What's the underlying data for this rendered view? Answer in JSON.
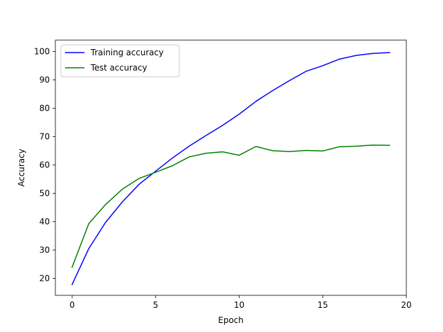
{
  "chart_data": {
    "type": "line",
    "title": "",
    "xlabel": "Epoch",
    "ylabel": "Accuracy",
    "xlim": [
      -1,
      20
    ],
    "ylim": [
      14,
      104
    ],
    "x_ticks": [
      0,
      5,
      10,
      15,
      20
    ],
    "y_ticks": [
      20,
      30,
      40,
      50,
      60,
      70,
      80,
      90,
      100
    ],
    "grid": false,
    "legend_position": "top-left",
    "x": [
      0,
      1,
      2,
      3,
      4,
      5,
      6,
      7,
      8,
      9,
      10,
      11,
      12,
      13,
      14,
      15,
      16,
      17,
      18,
      19
    ],
    "series": [
      {
        "name": "Training accuracy",
        "color": "#0000ff",
        "values": [
          17.8,
          30.5,
          39.7,
          46.9,
          53.1,
          57.8,
          62.4,
          66.6,
          70.3,
          73.9,
          77.9,
          82.4,
          86.2,
          89.7,
          93.0,
          95.0,
          97.3,
          98.6,
          99.3,
          99.6
        ]
      },
      {
        "name": "Test accuracy",
        "color": "#008000",
        "values": [
          23.9,
          39.3,
          46.0,
          51.4,
          55.2,
          57.4,
          59.7,
          62.8,
          64.1,
          64.6,
          63.4,
          66.5,
          65.0,
          64.7,
          65.1,
          64.9,
          66.4,
          66.6,
          67.0,
          66.9
        ]
      }
    ]
  }
}
